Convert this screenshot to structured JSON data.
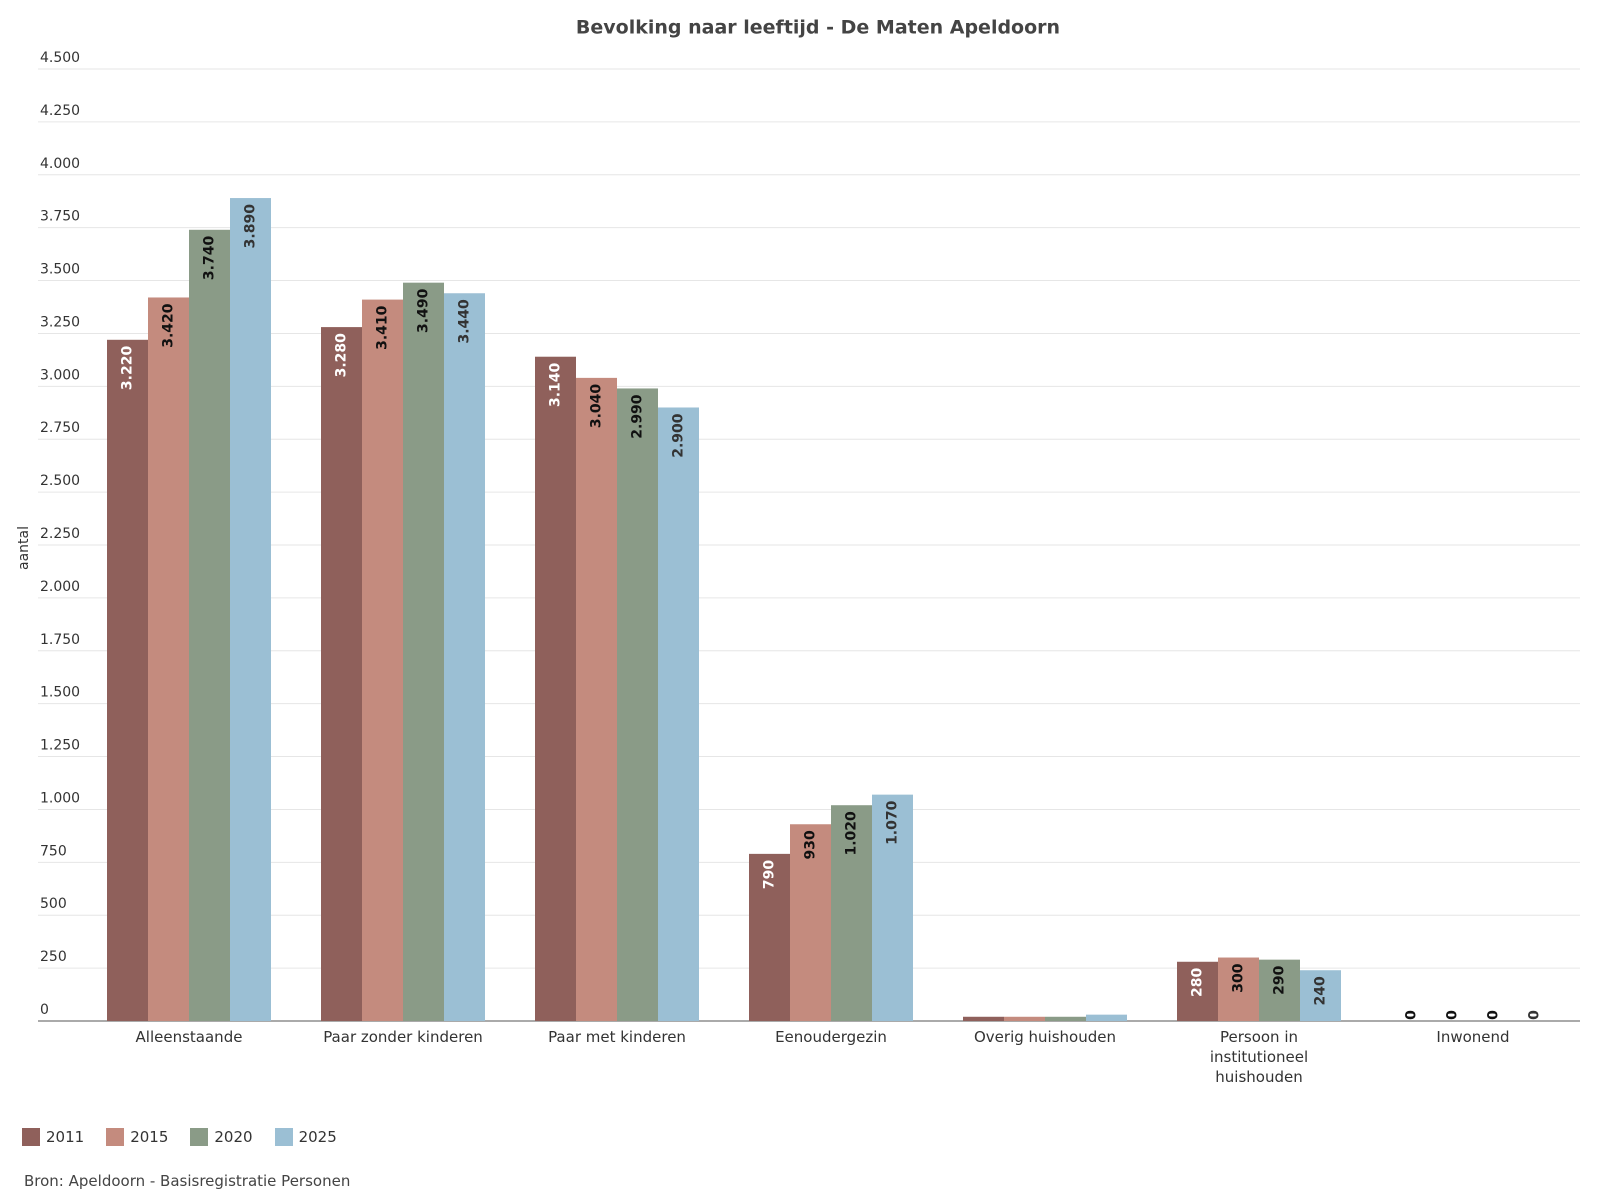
{
  "chart_data": {
    "type": "bar",
    "title": "Bevolking naar leeftijd - De Maten Apeldoorn",
    "y_label": "aantal",
    "source": "Bron: Apeldoorn - Basisregistratie Personen",
    "categories": [
      "Alleenstaande",
      "Paar zonder kinderen",
      "Paar met kinderen",
      "Eenoudergezin",
      "Overig huishouden",
      "Persoon in institutioneel huishouden",
      "Inwonend"
    ],
    "series": [
      {
        "name": "2011",
        "color": "#8f605b",
        "values": [
          3220,
          3280,
          3140,
          790,
          20,
          280,
          0
        ],
        "value_labels": [
          "3.220",
          "3.280",
          "3.140",
          "790",
          null,
          "280",
          "0"
        ]
      },
      {
        "name": "2015",
        "color": "#c48b7e",
        "values": [
          3420,
          3410,
          3040,
          930,
          20,
          300,
          0
        ],
        "value_labels": [
          "3.420",
          "3.410",
          "3.040",
          "930",
          null,
          "300",
          "0"
        ]
      },
      {
        "name": "2020",
        "color": "#8a9b87",
        "values": [
          3740,
          3490,
          2990,
          1020,
          20,
          290,
          0
        ],
        "value_labels": [
          "3.740",
          "3.490",
          "2.990",
          "1.020",
          null,
          "290",
          "0"
        ]
      },
      {
        "name": "2025",
        "color": "#9bbfd4",
        "values": [
          3890,
          3440,
          2900,
          1070,
          30,
          240,
          0
        ],
        "value_labels": [
          "3.890",
          "3.440",
          "2.900",
          "1.070",
          null,
          "240",
          "0"
        ]
      }
    ],
    "ylim": [
      0,
      4500
    ],
    "yticks": [
      0,
      250,
      500,
      750,
      {
        "value": 1000,
        "label": "1.000"
      },
      {
        "value": 1250,
        "label": "1.250"
      },
      {
        "value": 1500,
        "label": "1.500"
      },
      {
        "value": 1750,
        "label": "1.750"
      },
      {
        "value": 2000,
        "label": "2.000"
      },
      {
        "value": 2250,
        "label": "2.250"
      },
      {
        "value": 2500,
        "label": "2.500"
      },
      {
        "value": 2750,
        "label": "2.750"
      },
      {
        "value": 3000,
        "label": "3.000"
      },
      {
        "value": 3250,
        "label": "3.250"
      },
      {
        "value": 3500,
        "label": "3.500"
      },
      {
        "value": 3750,
        "label": "3.750"
      },
      {
        "value": 4000,
        "label": "4.000"
      },
      {
        "value": 4250,
        "label": "4.250"
      },
      {
        "value": 4500,
        "label": "4.500"
      }
    ],
    "grid": true
  }
}
